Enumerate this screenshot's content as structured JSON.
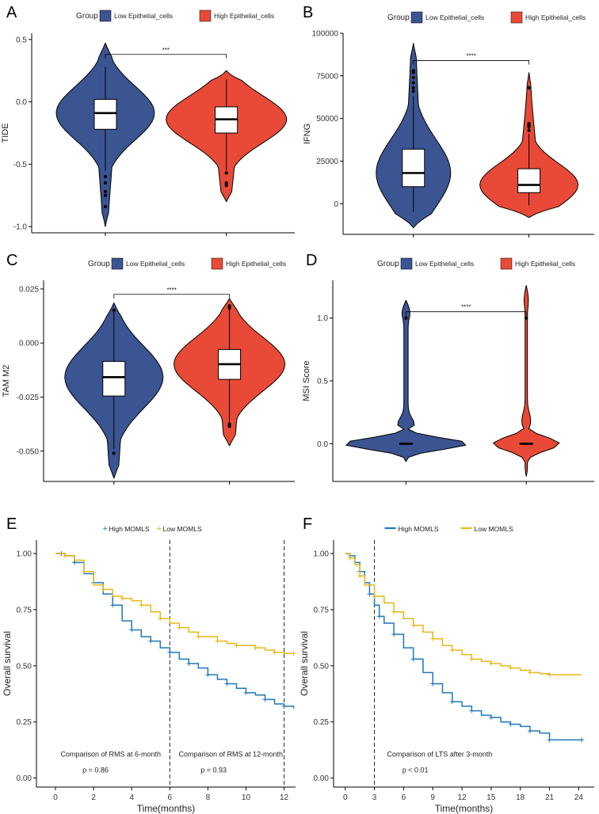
{
  "colors": {
    "low_group": "#3b5492",
    "high_group": "#e84a37",
    "km_high": "#1f77bd",
    "km_low": "#e8b716"
  },
  "chart_data": [
    {
      "panel": "A",
      "type": "violin",
      "legend_title": "Group",
      "groups": [
        "Low Epithelial_cells",
        "High Epithelial_cells"
      ],
      "ylabel": "TIDE",
      "xlabel": "",
      "ylim": [
        -1.05,
        0.55
      ],
      "yticks": [
        -1.0,
        -0.5,
        0.0,
        0.5
      ],
      "tick_labels": [
        "-1.0",
        "-0.5",
        "0.0",
        "0.5"
      ],
      "significance": "***",
      "bracket_y": 0.38,
      "series": [
        {
          "name": "Low Epithelial_cells",
          "min": -1.0,
          "max": 0.47,
          "q1": -0.22,
          "median": -0.09,
          "q3": 0.02,
          "wlo": -0.55,
          "whi": 0.28,
          "outliers": [
            -0.6,
            -0.65,
            -0.72,
            -0.75,
            -0.84
          ]
        },
        {
          "name": "High Epithelial_cells",
          "min": -0.8,
          "max": 0.25,
          "q1": -0.25,
          "median": -0.14,
          "q3": -0.04,
          "wlo": -0.55,
          "whi": 0.18,
          "outliers": [
            -0.57,
            -0.65,
            -0.67
          ]
        }
      ]
    },
    {
      "panel": "B",
      "type": "violin",
      "legend_title": "Group",
      "groups": [
        "Low Epithelial_cells",
        "High Epithelial_cells"
      ],
      "ylabel": "IFNG",
      "xlabel": "",
      "ylim": [
        -18000,
        100000
      ],
      "yticks": [
        0,
        25000,
        50000,
        75000,
        100000
      ],
      "tick_labels": [
        "0",
        "25000",
        "50000",
        "75000",
        "100000"
      ],
      "significance": "****",
      "bracket_y": 84000,
      "series": [
        {
          "name": "Low Epithelial_cells",
          "min": -14000,
          "max": 94000,
          "q1": 10000,
          "median": 18000,
          "q3": 32000,
          "wlo": -5000,
          "whi": 63000,
          "outliers": [
            66000,
            68000,
            71000,
            74000,
            77000,
            78000
          ]
        },
        {
          "name": "High Epithelial_cells",
          "min": -8000,
          "max": 77000,
          "q1": 6500,
          "median": 11000,
          "q3": 20500,
          "wlo": -1000,
          "whi": 41000,
          "outliers": [
            43000,
            45000,
            46000,
            47000,
            68000
          ]
        }
      ]
    },
    {
      "panel": "C",
      "type": "violin",
      "legend_title": "Group",
      "groups": [
        "Low Epithelial_cells",
        "High Epithelial_cells"
      ],
      "ylabel": "TAM M2",
      "xlabel": "",
      "ylim": [
        -0.064,
        0.029
      ],
      "yticks": [
        -0.05,
        -0.025,
        0.0,
        0.025
      ],
      "tick_labels": [
        "-0.050",
        "-0.025",
        "0.000",
        "0.025"
      ],
      "significance": "****",
      "bracket_y": 0.0225,
      "series": [
        {
          "name": "Low Epithelial_cells",
          "min": -0.0625,
          "max": 0.0185,
          "q1": -0.0245,
          "median": -0.0158,
          "q3": -0.0085,
          "wlo": -0.049,
          "whi": 0.0145,
          "outliers": [
            -0.051,
            0.0152
          ]
        },
        {
          "name": "High Epithelial_cells",
          "min": -0.0475,
          "max": 0.0205,
          "q1": -0.0168,
          "median": -0.0098,
          "q3": -0.003,
          "wlo": -0.037,
          "whi": 0.0155,
          "outliers": [
            -0.0375,
            -0.0385,
            0.0162,
            0.0172
          ]
        }
      ]
    },
    {
      "panel": "D",
      "type": "violin",
      "legend_title": "Group",
      "groups": [
        "Low Epithelial_cells",
        "High Epithelial_cells"
      ],
      "ylabel": "MSI Score",
      "xlabel": "",
      "ylim": [
        -0.3,
        1.3
      ],
      "yticks": [
        0.0,
        0.5,
        1.0
      ],
      "tick_labels": [
        "0.0",
        "0.5",
        "1.0"
      ],
      "significance": "****",
      "bracket_y": 1.05,
      "series": [
        {
          "name": "Low Epithelial_cells",
          "min": -0.14,
          "max": 1.14,
          "q1": -0.005,
          "median": 0.0,
          "q3": 0.005,
          "wlo": -0.01,
          "whi": 0.01,
          "outliers": [
            1.0
          ]
        },
        {
          "name": "High Epithelial_cells",
          "min": -0.26,
          "max": 1.26,
          "q1": -0.005,
          "median": 0.0,
          "q3": 0.005,
          "wlo": -0.01,
          "whi": 0.01,
          "outliers": [
            1.0
          ]
        }
      ]
    },
    {
      "panel": "E",
      "type": "line",
      "subtype": "kaplan-meier",
      "legend": [
        "High MOMLS",
        "Low MOMLS"
      ],
      "xlabel": "Time(months)",
      "ylabel": "Overall survival",
      "xlim": [
        -1,
        12.6
      ],
      "xticks": [
        0,
        2,
        4,
        6,
        8,
        10,
        12
      ],
      "ylim": [
        -0.04,
        1.06
      ],
      "yticks": [
        0.0,
        0.25,
        0.5,
        0.75,
        1.0
      ],
      "y_tick_labels": [
        "0.00",
        "0.25",
        "0.50",
        "0.75",
        "1.00"
      ],
      "vlines": [
        6,
        12
      ],
      "annotations": [
        {
          "text": "Comparison of RMS at 6-month",
          "x": 2.9,
          "y": 0.095
        },
        {
          "text": "p = 0.86",
          "x": 2.1,
          "y": 0.025
        },
        {
          "text": "Comparison of RMS at 12-month",
          "x": 9.2,
          "y": 0.095
        },
        {
          "text": "p = 0.93",
          "x": 8.3,
          "y": 0.025
        }
      ],
      "series": [
        {
          "name": "High MOMLS",
          "points": [
            [
              0,
              1.0
            ],
            [
              0.3,
              1.0
            ],
            [
              0.5,
              0.99
            ],
            [
              1,
              0.96
            ],
            [
              1.5,
              0.91
            ],
            [
              2,
              0.87
            ],
            [
              2.5,
              0.82
            ],
            [
              3,
              0.77
            ],
            [
              3.5,
              0.7
            ],
            [
              4,
              0.66
            ],
            [
              4.5,
              0.63
            ],
            [
              5,
              0.61
            ],
            [
              5.5,
              0.58
            ],
            [
              6,
              0.56
            ],
            [
              6.5,
              0.53
            ],
            [
              7,
              0.51
            ],
            [
              7.5,
              0.49
            ],
            [
              8,
              0.46
            ],
            [
              8.5,
              0.44
            ],
            [
              9,
              0.42
            ],
            [
              9.5,
              0.4
            ],
            [
              10,
              0.38
            ],
            [
              10.5,
              0.37
            ],
            [
              11,
              0.35
            ],
            [
              11.5,
              0.33
            ],
            [
              12,
              0.32
            ],
            [
              12.5,
              0.31
            ]
          ]
        },
        {
          "name": "Low MOMLS",
          "points": [
            [
              0,
              1.0
            ],
            [
              0.5,
              0.99
            ],
            [
              1,
              0.97
            ],
            [
              1.5,
              0.92
            ],
            [
              2,
              0.86
            ],
            [
              2.5,
              0.84
            ],
            [
              3,
              0.81
            ],
            [
              3.5,
              0.8
            ],
            [
              4,
              0.79
            ],
            [
              4.5,
              0.77
            ],
            [
              5,
              0.74
            ],
            [
              5.5,
              0.71
            ],
            [
              6,
              0.69
            ],
            [
              6.5,
              0.67
            ],
            [
              7,
              0.65
            ],
            [
              7.5,
              0.63
            ],
            [
              8,
              0.63
            ],
            [
              8.5,
              0.61
            ],
            [
              9,
              0.6
            ],
            [
              9.5,
              0.59
            ],
            [
              10,
              0.59
            ],
            [
              10.5,
              0.58
            ],
            [
              11,
              0.57
            ],
            [
              11.5,
              0.56
            ],
            [
              12,
              0.555
            ],
            [
              12.5,
              0.555
            ]
          ]
        }
      ]
    },
    {
      "panel": "F",
      "type": "line",
      "subtype": "kaplan-meier",
      "legend": [
        "High MOMLS",
        "Low MOMLS"
      ],
      "xlabel": "Time(months)",
      "ylabel": "Overall survival",
      "xlim": [
        -1.2,
        25.6
      ],
      "xticks": [
        0,
        3,
        6,
        9,
        12,
        15,
        18,
        21,
        24
      ],
      "ylim": [
        -0.04,
        1.06
      ],
      "yticks": [
        0.0,
        0.25,
        0.5,
        0.75,
        1.0
      ],
      "y_tick_labels": [
        "0.00",
        "0.25",
        "0.50",
        "0.75",
        "1.00"
      ],
      "vlines": [
        3
      ],
      "annotations": [
        {
          "text": "Comparison of LTS after 3-month",
          "x": 9.7,
          "y": 0.095
        },
        {
          "text": "p < 0.01",
          "x": 7.2,
          "y": 0.025
        }
      ],
      "series": [
        {
          "name": "High MOMLS",
          "points": [
            [
              0,
              1.0
            ],
            [
              0.5,
              0.99
            ],
            [
              1,
              0.96
            ],
            [
              1.5,
              0.92
            ],
            [
              2,
              0.87
            ],
            [
              2.5,
              0.82
            ],
            [
              3,
              0.77
            ],
            [
              3.5,
              0.72
            ],
            [
              4,
              0.69
            ],
            [
              5,
              0.64
            ],
            [
              6,
              0.58
            ],
            [
              7,
              0.53
            ],
            [
              8,
              0.47
            ],
            [
              9,
              0.42
            ],
            [
              10,
              0.38
            ],
            [
              11,
              0.34
            ],
            [
              12,
              0.32
            ],
            [
              13,
              0.3
            ],
            [
              14,
              0.28
            ],
            [
              15,
              0.27
            ],
            [
              16,
              0.25
            ],
            [
              17,
              0.24
            ],
            [
              18,
              0.23
            ],
            [
              19,
              0.21
            ],
            [
              20,
              0.2
            ],
            [
              21,
              0.17
            ],
            [
              22,
              0.17
            ],
            [
              24.3,
              0.17
            ]
          ]
        },
        {
          "name": "Low MOMLS",
          "points": [
            [
              0,
              1.0
            ],
            [
              0.5,
              0.98
            ],
            [
              1,
              0.95
            ],
            [
              1.5,
              0.9
            ],
            [
              2,
              0.86
            ],
            [
              3,
              0.81
            ],
            [
              4,
              0.78
            ],
            [
              5,
              0.74
            ],
            [
              6,
              0.71
            ],
            [
              7,
              0.68
            ],
            [
              8,
              0.65
            ],
            [
              9,
              0.62
            ],
            [
              10,
              0.59
            ],
            [
              11,
              0.57
            ],
            [
              12,
              0.55
            ],
            [
              13,
              0.53
            ],
            [
              14,
              0.52
            ],
            [
              15,
              0.51
            ],
            [
              16,
              0.5
            ],
            [
              17,
              0.49
            ],
            [
              18,
              0.48
            ],
            [
              19,
              0.47
            ],
            [
              20,
              0.465
            ],
            [
              21,
              0.46
            ],
            [
              24.3,
              0.46
            ]
          ]
        }
      ]
    }
  ]
}
